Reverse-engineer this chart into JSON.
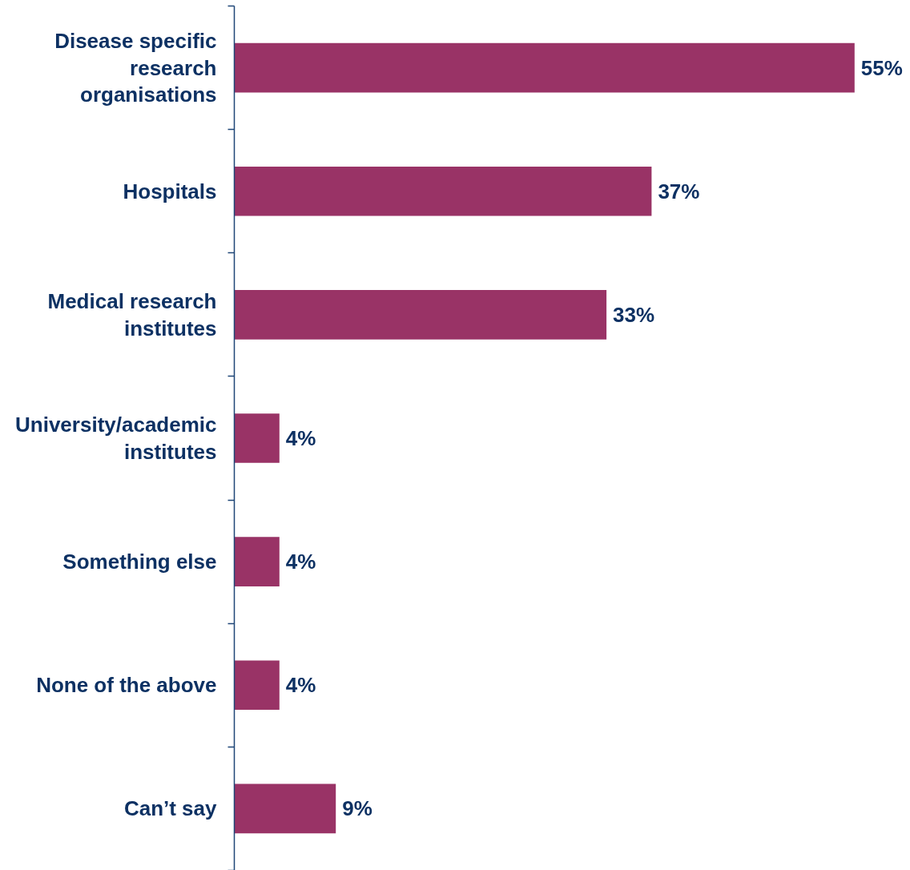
{
  "chart_data": {
    "type": "bar",
    "orientation": "horizontal",
    "categories": [
      "Disease specific research organisations",
      "Hospitals",
      "Medical research institutes",
      "University/academic institutes",
      "Something else",
      "None of the above",
      "Can’t say"
    ],
    "values": [
      55,
      37,
      33,
      4,
      4,
      4,
      9
    ],
    "value_labels": [
      "55%",
      "37%",
      "33%",
      "4%",
      "4%",
      "4%",
      "9%"
    ],
    "color": "#993366",
    "tick_labels": "y",
    "grid": false
  }
}
